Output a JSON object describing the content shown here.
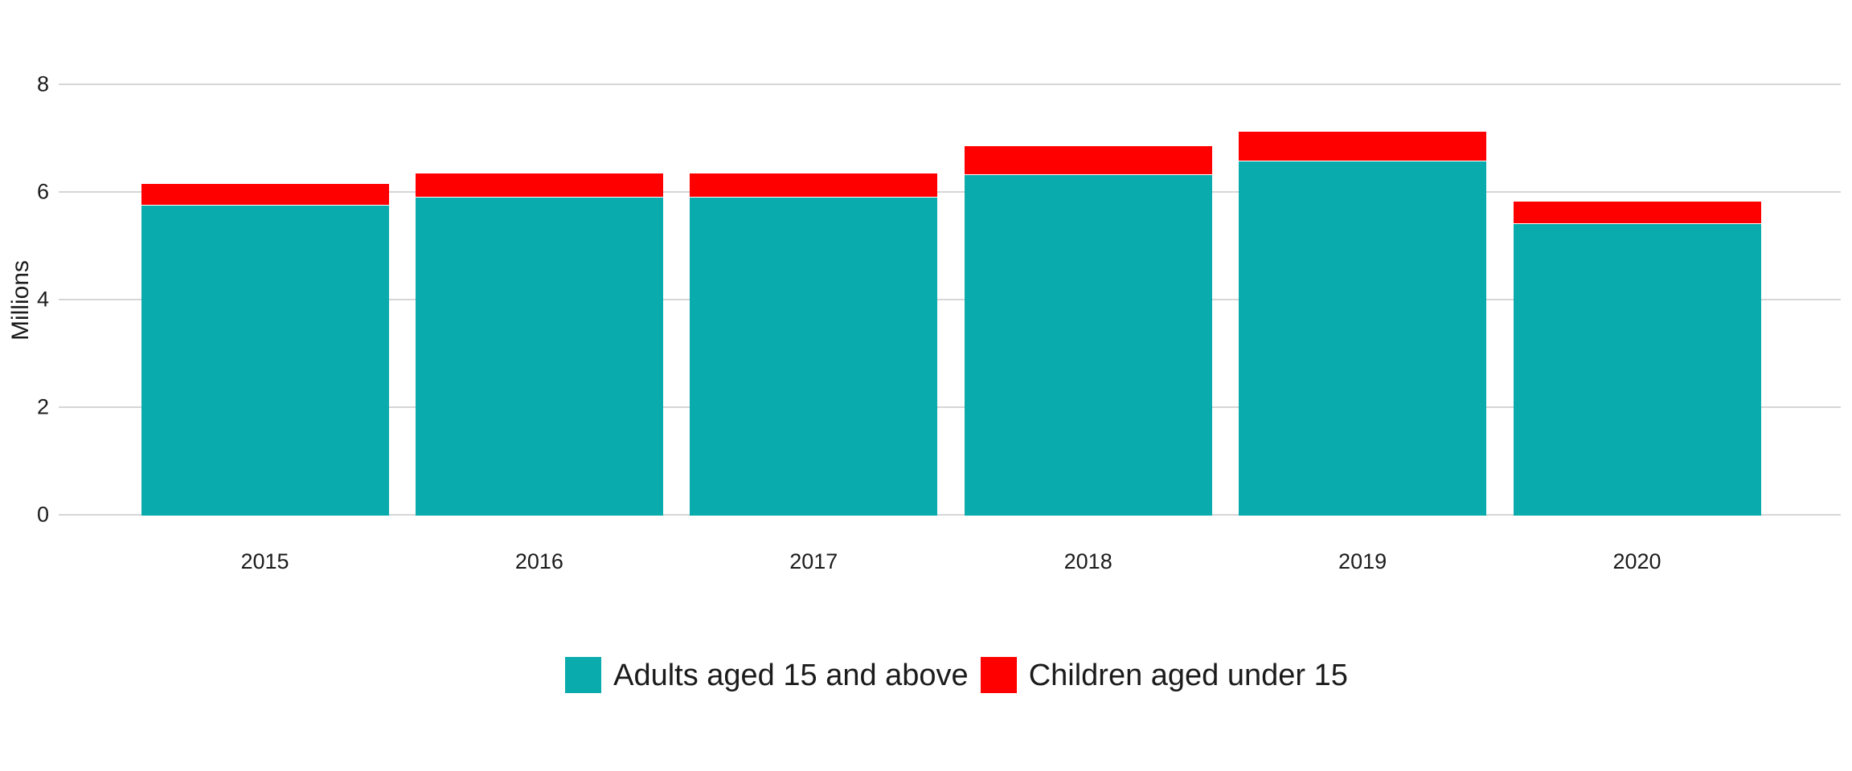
{
  "chart_data": {
    "type": "bar",
    "stacked": true,
    "title": "",
    "categories": [
      "2015",
      "2016",
      "2017",
      "2018",
      "2019",
      "2020"
    ],
    "series": [
      {
        "name": "Adults aged 15 and above",
        "color": "#0aabac",
        "values": [
          5.76,
          5.91,
          5.91,
          6.33,
          6.58,
          5.42
        ]
      },
      {
        "name": "Children aged under 15",
        "color": "#fe0000",
        "values": [
          0.39,
          0.44,
          0.43,
          0.52,
          0.54,
          0.4
        ]
      }
    ],
    "xlabel": "",
    "ylabel": "Millions",
    "ylim": [
      0,
      8
    ],
    "yticks": [
      0,
      2,
      4,
      6,
      8
    ],
    "grid": true,
    "grid_color": "#d6d6d6",
    "text_color": "#1b1b1b",
    "legend_position": "bottom"
  }
}
